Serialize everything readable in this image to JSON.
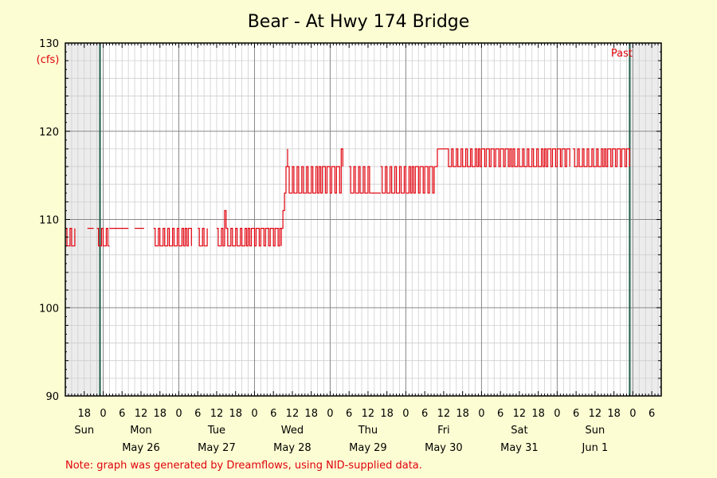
{
  "chart_data": {
    "type": "line",
    "title": "Bear - At Hwy 174 Bridge",
    "ylabel": "(cfs)",
    "ylim": [
      90,
      130
    ],
    "yticks": [
      90,
      100,
      110,
      120,
      130
    ],
    "x_start": "2025-05-25T12:00",
    "x_end": "2025-06-02T09:00",
    "x_tick_labels": [
      "18",
      "0",
      "6",
      "12",
      "18",
      "0",
      "6",
      "12",
      "18",
      "0",
      "6",
      "12",
      "18",
      "0",
      "6",
      "12",
      "18",
      "0",
      "6",
      "12",
      "18",
      "0",
      "6",
      "12",
      "18",
      "0",
      "6",
      "12",
      "18",
      "0",
      "6"
    ],
    "day_labels": [
      {
        "day": "Sun",
        "date": "",
        "at": "2025-05-25T18:00"
      },
      {
        "day": "Mon",
        "date": "May 26",
        "at": "2025-05-26T12:00"
      },
      {
        "day": "Tue",
        "date": "May 27",
        "at": "2025-05-27T12:00"
      },
      {
        "day": "Wed",
        "date": "May 28",
        "at": "2025-05-28T12:00"
      },
      {
        "day": "Thu",
        "date": "May 29",
        "at": "2025-05-29T12:00"
      },
      {
        "day": "Fri",
        "date": "May 30",
        "at": "2025-05-30T12:00"
      },
      {
        "day": "Sat",
        "date": "May 31",
        "at": "2025-05-31T12:00"
      },
      {
        "day": "Sun",
        "date": "Jun 1",
        "at": "2025-06-01T12:00"
      }
    ],
    "past_label": "Past",
    "past_range": [
      "2025-05-25T23:00",
      "2025-06-01T23:00"
    ],
    "grid": true,
    "series": [
      {
        "color": "#e0000b",
        "segments": [
          {
            "from": "2025-05-25T12:00",
            "to": "2025-05-25T15:00",
            "pattern": "alternating",
            "low": 107,
            "high": 109
          },
          {
            "from": "2025-05-25T19:00",
            "to": "2025-05-25T21:00",
            "pattern": "constant",
            "value": 109
          },
          {
            "from": "2025-05-25T22:00",
            "to": "2025-05-26T02:00",
            "pattern": "alternating",
            "low": 107,
            "high": 109
          },
          {
            "from": "2025-05-26T02:00",
            "to": "2025-05-26T08:00",
            "pattern": "constant",
            "value": 109
          },
          {
            "from": "2025-05-26T10:00",
            "to": "2025-05-26T13:00",
            "pattern": "constant",
            "value": 109
          },
          {
            "from": "2025-05-26T16:00",
            "to": "2025-05-27T04:00",
            "pattern": "alternating",
            "low": 107,
            "high": 109
          },
          {
            "from": "2025-05-27T06:00",
            "to": "2025-05-27T09:00",
            "pattern": "alternating",
            "low": 107,
            "high": 109
          },
          {
            "from": "2025-05-27T12:00",
            "to": "2025-05-28T08:30",
            "pattern": "alternating",
            "low": 107,
            "high": 109,
            "peak": {
              "at": "2025-05-27T14:30",
              "value": 111
            }
          },
          {
            "from": "2025-05-28T08:30",
            "to": "2025-05-28T10:30",
            "pattern": "rise",
            "values": [
              109,
              111,
              113,
              116,
              118
            ]
          },
          {
            "from": "2025-05-28T10:30",
            "to": "2025-05-29T04:00",
            "pattern": "alternating",
            "low": 113,
            "high": 116,
            "peak": {
              "at": "2025-05-29T03:30",
              "value": 118
            }
          },
          {
            "from": "2025-05-29T06:00",
            "to": "2025-05-29T13:00",
            "pattern": "alternating",
            "low": 113,
            "high": 116
          },
          {
            "from": "2025-05-29T13:00",
            "to": "2025-05-29T16:00",
            "pattern": "constant",
            "value": 113
          },
          {
            "from": "2025-05-29T16:00",
            "to": "2025-05-30T09:00",
            "pattern": "alternating",
            "low": 113,
            "high": 116
          },
          {
            "from": "2025-05-30T09:00",
            "to": "2025-05-30T10:00",
            "pattern": "rise",
            "values": [
              116,
              118
            ]
          },
          {
            "from": "2025-05-30T10:00",
            "to": "2025-05-30T13:00",
            "pattern": "constant",
            "value": 118
          },
          {
            "from": "2025-05-30T13:00",
            "to": "2025-06-01T04:00",
            "pattern": "alternating",
            "low": 116,
            "high": 118
          },
          {
            "from": "2025-06-01T05:00",
            "to": "2025-06-01T23:00",
            "pattern": "alternating",
            "low": 116,
            "high": 118
          }
        ]
      }
    ]
  },
  "note": "Note: graph was generated by Dreamflows, using NID-supplied data."
}
